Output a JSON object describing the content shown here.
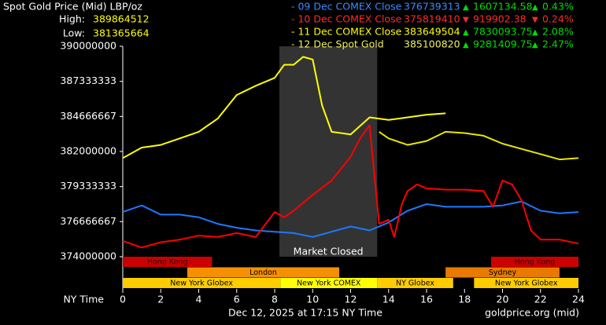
{
  "chart_data": {
    "type": "line",
    "title": "Spot Gold Price (Mid) LBP/oz",
    "high_label": "High:",
    "high": "389864512",
    "low_label": "Low:",
    "low": "381365664",
    "x_label": "NY Time",
    "timestamp": "Dec 12, 2025 at 17:15 NY Time",
    "source": "goldprice.org (mid)",
    "market_closed": {
      "label": "Market Closed",
      "start": 8.25,
      "end": 13.4,
      "color": "#333333"
    },
    "xlim": [
      0,
      24
    ],
    "xticks": [
      0,
      2,
      4,
      6,
      8,
      10,
      12,
      14,
      16,
      18,
      20,
      22,
      24
    ],
    "ylim": [
      374000000,
      390000000
    ],
    "yticks": [
      374000000,
      376666667,
      379333333,
      382000000,
      384666667,
      387333333,
      390000000
    ],
    "series": [
      {
        "name": "- 09 Dec COMEX Close",
        "color": "#1e78ff",
        "text_color": "#3b8cff",
        "close": "376739313",
        "arrow": "▲",
        "change": "1607134.58",
        "percent": "0.43%",
        "change_color": "#00dd00",
        "x": [
          0,
          1,
          2,
          3,
          4,
          5,
          6,
          7,
          8,
          9,
          10,
          11,
          12,
          13,
          14,
          15,
          16,
          17,
          18,
          19,
          20,
          21,
          22,
          23,
          24
        ],
        "values": [
          377400000,
          377900000,
          377200000,
          377200000,
          377000000,
          376500000,
          376200000,
          376000000,
          375900000,
          375800000,
          375500000,
          375900000,
          376300000,
          376000000,
          376600000,
          377500000,
          378000000,
          377800000,
          377800000,
          377800000,
          377900000,
          378200000,
          377500000,
          377300000,
          377400000
        ]
      },
      {
        "name": "- 10 Dec COMEX Close",
        "color": "#ff0000",
        "text_color": "#ff2a2a",
        "close": "375819410",
        "arrow": "▼",
        "change": "919902.38",
        "percent": "0.24%",
        "change_color": "#ff2a2a",
        "x": [
          0,
          1,
          2,
          3,
          4,
          5,
          6,
          7,
          8,
          8.5,
          9,
          10,
          11,
          12,
          12.5,
          13,
          13.5,
          14,
          14.3,
          14.7,
          15,
          15.5,
          16,
          17,
          18,
          19,
          19.5,
          20,
          20.5,
          21,
          21.5,
          22,
          23,
          24
        ],
        "values": [
          375200000,
          374700000,
          375100000,
          375300000,
          375600000,
          375500000,
          375800000,
          375500000,
          377400000,
          377000000,
          377500000,
          378700000,
          379800000,
          381600000,
          383000000,
          384000000,
          376500000,
          376800000,
          375500000,
          378000000,
          379000000,
          379500000,
          379200000,
          379100000,
          379100000,
          379000000,
          377800000,
          379800000,
          379500000,
          378300000,
          376000000,
          375300000,
          375300000,
          375000000
        ]
      },
      {
        "name": "- 11 Dec COMEX Close",
        "color": "#ffff00",
        "text_color": "#ffff00",
        "close": "383649504",
        "arrow": "▲",
        "change": "7830093.75",
        "percent": "2.08%",
        "change_color": "#00dd00",
        "x": [
          0,
          1,
          2,
          3,
          4,
          5,
          6,
          7,
          8,
          8.5,
          9,
          9.5,
          10,
          10.5,
          11,
          12,
          13,
          14,
          15,
          16,
          17
        ],
        "values": [
          381500000,
          382300000,
          382500000,
          383000000,
          383500000,
          384500000,
          386300000,
          387000000,
          387600000,
          388600000,
          388600000,
          389200000,
          389000000,
          385500000,
          383500000,
          383300000,
          384600000,
          384400000,
          384600000,
          384800000,
          384900000
        ]
      },
      {
        "name": "- 12 Dec Spot Gold",
        "color": "#e8e800",
        "text_color": "#f0f060",
        "close": "385100820",
        "arrow": "▲",
        "change": "9281409.75",
        "percent": "2.47%",
        "change_color": "#00dd00",
        "x": [
          13.5,
          14,
          15,
          16,
          17,
          18,
          19,
          20,
          21,
          22,
          23,
          24
        ],
        "values": [
          383500000,
          383000000,
          382500000,
          382800000,
          383500000,
          383400000,
          383200000,
          382600000,
          382200000,
          381800000,
          381400000,
          381500000
        ]
      }
    ],
    "sessions": [
      {
        "label": "Hong Kong",
        "row": 0,
        "start": 0,
        "end": 4.7,
        "color": "#cc0000"
      },
      {
        "label": "Hong Kong",
        "row": 0,
        "start": 19.4,
        "end": 24,
        "color": "#cc0000"
      },
      {
        "label": "London",
        "row": 1,
        "start": 3.4,
        "end": 11.4,
        "color": "#f59000"
      },
      {
        "label": "Sydney",
        "row": 1,
        "start": 17,
        "end": 23,
        "color": "#e87a00"
      },
      {
        "label": "New York Globex",
        "row": 2,
        "start": 0,
        "end": 8.3,
        "color": "#ffcc00"
      },
      {
        "label": "New York COMEX",
        "row": 2,
        "start": 8.3,
        "end": 13.4,
        "color": "#ffff00"
      },
      {
        "label": "NY Globex",
        "row": 2,
        "start": 13.4,
        "end": 17.4,
        "color": "#ffcc00"
      },
      {
        "label": "New York Globex",
        "row": 2,
        "start": 18.5,
        "end": 24,
        "color": "#ffcc00"
      }
    ]
  }
}
